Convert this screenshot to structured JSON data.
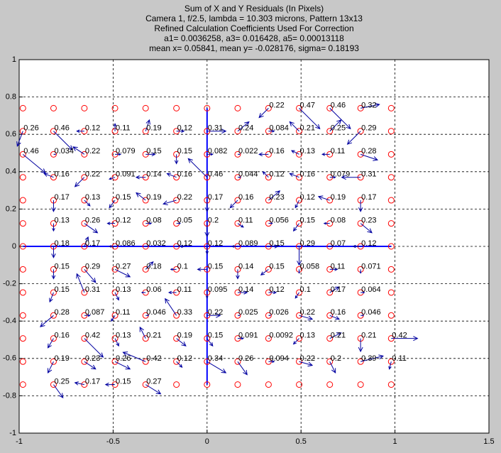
{
  "chart_data": {
    "type": "quiver",
    "title": [
      "Sum of X and Y Residuals (In Pixels)",
      "Camera 1, f/2.5, lambda = 10.303 microns, Pattern 13x13",
      "Refined Calculation Coefficients Used For Correction",
      "a1= 0.0036258, a3= 0.016428, a5= 0.00013118",
      "mean x= 0.05841, mean y= -0.028176, sigma= 0.18193"
    ],
    "xlim": [
      -1,
      1.5
    ],
    "ylim": [
      -1,
      1
    ],
    "xticks": [
      -1,
      -0.5,
      0,
      0.5,
      1,
      1.5
    ],
    "yticks": [
      -1,
      -0.8,
      -0.6,
      -0.4,
      -0.2,
      0,
      0.2,
      0.4,
      0.6,
      0.8,
      1
    ],
    "grid": true,
    "circle_color": "#ff0000",
    "arrow_color": "#0000a0",
    "axis_line_color": "#0000ff",
    "grid_x": [
      -0.98,
      -0.817,
      -0.653,
      -0.49,
      -0.327,
      -0.163,
      0,
      0.163,
      0.327,
      0.49,
      0.653,
      0.817,
      0.98
    ],
    "grid_y": [
      0.74,
      0.617,
      0.493,
      0.37,
      0.247,
      0.123,
      0,
      -0.123,
      -0.247,
      -0.37,
      -0.493,
      -0.617,
      -0.74
    ],
    "vectors": [
      {
        "x": 0.327,
        "y": 0.74,
        "u": -0.05,
        "v": -0.05,
        "value": 0.22
      },
      {
        "x": 0.49,
        "y": 0.74,
        "u": 0.11,
        "v": -0.11,
        "value": 0.47
      },
      {
        "x": 0.653,
        "y": 0.74,
        "u": 0.11,
        "v": -0.11,
        "value": 0.46
      },
      {
        "x": 0.817,
        "y": 0.74,
        "u": 0.1,
        "v": 0.02,
        "value": 0.32
      },
      {
        "x": -0.98,
        "y": 0.617,
        "u": -0.03,
        "v": -0.08,
        "value": 0.26
      },
      {
        "x": -0.817,
        "y": 0.617,
        "u": 0.1,
        "v": -0.1,
        "value": 0.46
      },
      {
        "x": -0.653,
        "y": 0.617,
        "u": -0.04,
        "v": 0,
        "value": 0.12
      },
      {
        "x": -0.49,
        "y": 0.617,
        "u": 0,
        "v": 0.04,
        "value": 0.11
      },
      {
        "x": -0.327,
        "y": 0.617,
        "u": 0.02,
        "v": 0.06,
        "value": 0.19
      },
      {
        "x": -0.163,
        "y": 0.617,
        "u": 0.04,
        "v": 0,
        "value": 0.12
      },
      {
        "x": 0,
        "y": 0.617,
        "u": 0.1,
        "v": 0,
        "value": 0.31
      },
      {
        "x": 0.163,
        "y": 0.617,
        "u": 0.06,
        "v": 0.05,
        "value": 0.24
      },
      {
        "x": 0.327,
        "y": 0.617,
        "u": 0.03,
        "v": 0,
        "value": 0.084
      },
      {
        "x": 0.49,
        "y": 0.617,
        "u": -0.05,
        "v": 0.05,
        "value": 0.21
      },
      {
        "x": 0.653,
        "y": 0.617,
        "u": 0.06,
        "v": 0.06,
        "value": 0.25
      },
      {
        "x": 0.817,
        "y": 0.617,
        "u": -0.07,
        "v": -0.07,
        "value": 0.29
      },
      {
        "x": -0.98,
        "y": 0.493,
        "u": 0.12,
        "v": -0.1,
        "value": 0.46
      },
      {
        "x": -0.817,
        "y": 0.493,
        "u": 0.01,
        "v": 0,
        "value": 0.034
      },
      {
        "x": -0.653,
        "y": 0.493,
        "u": -0.06,
        "v": 0.04,
        "value": 0.22
      },
      {
        "x": -0.49,
        "y": 0.493,
        "u": 0.03,
        "v": 0,
        "value": 0.079
      },
      {
        "x": -0.327,
        "y": 0.493,
        "u": 0.05,
        "v": 0,
        "value": 0.15
      },
      {
        "x": -0.163,
        "y": 0.493,
        "u": 0,
        "v": -0.05,
        "value": 0.15
      },
      {
        "x": 0,
        "y": 0.493,
        "u": 0.03,
        "v": 0,
        "value": 0.082
      },
      {
        "x": 0.163,
        "y": 0.493,
        "u": 0.01,
        "v": 0,
        "value": 0.022
      },
      {
        "x": 0.327,
        "y": 0.493,
        "u": -0.05,
        "v": 0,
        "value": 0.16
      },
      {
        "x": 0.49,
        "y": 0.493,
        "u": -0.04,
        "v": 0.02,
        "value": 0.13
      },
      {
        "x": 0.653,
        "y": 0.493,
        "u": -0.04,
        "v": 0,
        "value": 0.11
      },
      {
        "x": 0.817,
        "y": 0.493,
        "u": 0.09,
        "v": -0.03,
        "value": 0.28
      },
      {
        "x": -0.817,
        "y": 0.37,
        "u": -0.05,
        "v": 0.02,
        "value": 0.16
      },
      {
        "x": -0.653,
        "y": 0.37,
        "u": -0.05,
        "v": -0.05,
        "value": 0.22
      },
      {
        "x": -0.49,
        "y": 0.37,
        "u": -0.03,
        "v": -0.01,
        "value": 0.091
      },
      {
        "x": -0.327,
        "y": 0.37,
        "u": -0.05,
        "v": 0,
        "value": 0.14
      },
      {
        "x": -0.163,
        "y": 0.37,
        "u": -0.05,
        "v": 0.02,
        "value": 0.16
      },
      {
        "x": 0,
        "y": 0.37,
        "u": -0.1,
        "v": 0.1,
        "value": 0.46
      },
      {
        "x": 0.163,
        "y": 0.37,
        "u": 0.015,
        "v": 0,
        "value": 0.044
      },
      {
        "x": 0.327,
        "y": 0.37,
        "u": -0.03,
        "v": 0.03,
        "value": 0.12
      },
      {
        "x": 0.49,
        "y": 0.37,
        "u": -0.05,
        "v": 0.02,
        "value": 0.16
      },
      {
        "x": 0.653,
        "y": 0.37,
        "u": 0.03,
        "v": 0,
        "value": 0.079
      },
      {
        "x": 0.817,
        "y": 0.37,
        "u": -0.1,
        "v": 0,
        "value": 0.31
      },
      {
        "x": -0.817,
        "y": 0.247,
        "u": 0,
        "v": -0.06,
        "value": 0.17
      },
      {
        "x": -0.653,
        "y": 0.247,
        "u": 0.03,
        "v": -0.03,
        "value": 0.13
      },
      {
        "x": -0.49,
        "y": 0.247,
        "u": -0.03,
        "v": -0.04,
        "value": 0.15
      },
      {
        "x": -0.327,
        "y": 0.247,
        "u": -0.05,
        "v": 0.04,
        "value": 0.19
      },
      {
        "x": -0.163,
        "y": 0.247,
        "u": -0.07,
        "v": -0.02,
        "value": 0.22
      },
      {
        "x": 0,
        "y": 0.247,
        "u": 0,
        "v": -0.06,
        "value": 0.17
      },
      {
        "x": 0.163,
        "y": 0.247,
        "u": -0.04,
        "v": -0.04,
        "value": 0.16
      },
      {
        "x": 0.327,
        "y": 0.247,
        "u": 0.06,
        "v": 0.05,
        "value": 0.23
      },
      {
        "x": 0.49,
        "y": 0.247,
        "u": -0.02,
        "v": -0.04,
        "value": 0.12
      },
      {
        "x": 0.653,
        "y": 0.247,
        "u": -0.06,
        "v": 0.02,
        "value": 0.19
      },
      {
        "x": 0.817,
        "y": 0.247,
        "u": 0,
        "v": -0.06,
        "value": 0.17
      },
      {
        "x": -0.817,
        "y": 0.123,
        "u": 0,
        "v": -0.04,
        "value": 0.13
      },
      {
        "x": -0.653,
        "y": 0.123,
        "u": 0.07,
        "v": -0.05,
        "value": 0.26
      },
      {
        "x": -0.49,
        "y": 0.123,
        "u": -0.04,
        "v": 0,
        "value": 0.12
      },
      {
        "x": -0.327,
        "y": 0.123,
        "u": 0.03,
        "v": 0,
        "value": 0.08
      },
      {
        "x": -0.163,
        "y": 0.123,
        "u": 0.02,
        "v": 0,
        "value": 0.05
      },
      {
        "x": 0,
        "y": 0.123,
        "u": 0,
        "v": -0.07,
        "value": 0.2
      },
      {
        "x": 0.163,
        "y": 0.123,
        "u": 0.03,
        "v": -0.02,
        "value": 0.11
      },
      {
        "x": 0.327,
        "y": 0.123,
        "u": 0.02,
        "v": 0,
        "value": 0.056
      },
      {
        "x": 0.49,
        "y": 0.123,
        "u": -0.03,
        "v": -0.04,
        "value": 0.15
      },
      {
        "x": 0.653,
        "y": 0.123,
        "u": -0.03,
        "v": 0,
        "value": 0.08
      },
      {
        "x": 0.817,
        "y": 0.123,
        "u": 0.06,
        "v": -0.05,
        "value": 0.23
      },
      {
        "x": -0.817,
        "y": 0,
        "u": 0,
        "v": -0.06,
        "value": 0.18
      },
      {
        "x": -0.653,
        "y": 0,
        "u": 0.02,
        "v": 0.05,
        "value": 0.17
      },
      {
        "x": -0.49,
        "y": 0,
        "u": -0.03,
        "v": 0,
        "value": 0.086
      },
      {
        "x": -0.327,
        "y": 0,
        "u": 0.01,
        "v": 0,
        "value": 0.032
      },
      {
        "x": -0.163,
        "y": 0,
        "u": 0.04,
        "v": 0,
        "value": 0.12
      },
      {
        "x": 0,
        "y": 0,
        "u": 0,
        "v": -0.04,
        "value": 0.12
      },
      {
        "x": 0.163,
        "y": 0,
        "u": -0.03,
        "v": 0,
        "value": 0.089
      },
      {
        "x": 0.327,
        "y": 0,
        "u": 0.05,
        "v": 0,
        "value": 0.15
      },
      {
        "x": 0.49,
        "y": 0,
        "u": 0,
        "v": -0.1,
        "value": 0.29
      },
      {
        "x": 0.653,
        "y": 0,
        "u": 0.02,
        "v": 0,
        "value": 0.07
      },
      {
        "x": 0.817,
        "y": 0,
        "u": -0.04,
        "v": 0,
        "value": 0.12
      },
      {
        "x": -0.817,
        "y": -0.123,
        "u": 0,
        "v": -0.05,
        "value": 0.15
      },
      {
        "x": -0.653,
        "y": -0.123,
        "u": 0.06,
        "v": -0.07,
        "value": 0.29
      },
      {
        "x": -0.49,
        "y": -0.123,
        "u": 0.08,
        "v": -0.04,
        "value": 0.27
      },
      {
        "x": -0.327,
        "y": -0.123,
        "u": 0.04,
        "v": 0.04,
        "value": 0.18
      },
      {
        "x": -0.163,
        "y": -0.123,
        "u": -0.03,
        "v": 0,
        "value": 0.1
      },
      {
        "x": 0,
        "y": -0.123,
        "u": -0.05,
        "v": 0,
        "value": 0.15
      },
      {
        "x": 0.163,
        "y": -0.123,
        "u": 0,
        "v": -0.05,
        "value": 0.14
      },
      {
        "x": 0.327,
        "y": -0.123,
        "u": -0.04,
        "v": -0.03,
        "value": 0.15
      },
      {
        "x": 0.49,
        "y": -0.123,
        "u": 0,
        "v": -0.02,
        "value": 0.058
      },
      {
        "x": 0.653,
        "y": -0.123,
        "u": 0.04,
        "v": 0,
        "value": 0.11
      },
      {
        "x": 0.817,
        "y": -0.123,
        "u": 0,
        "v": -0.02,
        "value": 0.071
      },
      {
        "x": -0.817,
        "y": -0.247,
        "u": -0.02,
        "v": -0.05,
        "value": 0.15
      },
      {
        "x": -0.653,
        "y": -0.247,
        "u": -0.04,
        "v": 0.1,
        "value": 0.31
      },
      {
        "x": -0.49,
        "y": -0.247,
        "u": 0.02,
        "v": -0.04,
        "value": 0.13
      },
      {
        "x": -0.327,
        "y": -0.247,
        "u": -0.02,
        "v": 0,
        "value": 0.06
      },
      {
        "x": -0.163,
        "y": -0.247,
        "u": -0.04,
        "v": 0,
        "value": 0.11
      },
      {
        "x": 0,
        "y": -0.247,
        "u": 0,
        "v": -0.03,
        "value": 0.095
      },
      {
        "x": 0.163,
        "y": -0.247,
        "u": 0.05,
        "v": 0,
        "value": 0.14
      },
      {
        "x": 0.327,
        "y": -0.247,
        "u": 0.04,
        "v": 0,
        "value": 0.12
      },
      {
        "x": 0.49,
        "y": -0.247,
        "u": -0.02,
        "v": -0.03,
        "value": 0.1
      },
      {
        "x": 0.653,
        "y": -0.247,
        "u": 0.05,
        "v": 0.03,
        "value": 0.17
      },
      {
        "x": 0.817,
        "y": -0.247,
        "u": 0.02,
        "v": 0,
        "value": 0.064
      },
      {
        "x": -0.817,
        "y": -0.37,
        "u": -0.07,
        "v": -0.06,
        "value": 0.28
      },
      {
        "x": -0.653,
        "y": -0.37,
        "u": 0.03,
        "v": 0,
        "value": 0.087
      },
      {
        "x": -0.49,
        "y": -0.37,
        "u": -0.02,
        "v": -0.03,
        "value": 0.11
      },
      {
        "x": -0.327,
        "y": -0.37,
        "u": 0.015,
        "v": 0,
        "value": 0.046
      },
      {
        "x": -0.163,
        "y": -0.37,
        "u": -0.06,
        "v": 0.09,
        "value": 0.33
      },
      {
        "x": 0,
        "y": -0.37,
        "u": 0.07,
        "v": 0,
        "value": 0.22
      },
      {
        "x": 0.163,
        "y": -0.37,
        "u": 0.01,
        "v": 0,
        "value": 0.025
      },
      {
        "x": 0.327,
        "y": -0.37,
        "u": 0.01,
        "v": 0,
        "value": 0.026
      },
      {
        "x": 0.49,
        "y": -0.37,
        "u": 0.07,
        "v": -0.02,
        "value": 0.22
      },
      {
        "x": 0.653,
        "y": -0.37,
        "u": 0.05,
        "v": -0.02,
        "value": 0.16
      },
      {
        "x": 0.817,
        "y": -0.37,
        "u": 0.015,
        "v": 0,
        "value": 0.046
      },
      {
        "x": -0.817,
        "y": -0.493,
        "u": -0.03,
        "v": -0.05,
        "value": 0.16
      },
      {
        "x": -0.653,
        "y": -0.493,
        "u": 0.1,
        "v": -0.1,
        "value": 0.42
      },
      {
        "x": -0.49,
        "y": -0.493,
        "u": 0.02,
        "v": -0.04,
        "value": 0.13
      },
      {
        "x": -0.327,
        "y": -0.493,
        "u": -0.03,
        "v": 0.06,
        "value": 0.21
      },
      {
        "x": -0.163,
        "y": -0.493,
        "u": 0.05,
        "v": -0.04,
        "value": 0.19
      },
      {
        "x": 0,
        "y": -0.493,
        "u": 0.03,
        "v": -0.04,
        "value": 0.15
      },
      {
        "x": 0.163,
        "y": -0.493,
        "u": 0.03,
        "v": 0,
        "value": 0.091
      },
      {
        "x": 0.327,
        "y": -0.493,
        "u": 0.003,
        "v": 0,
        "value": 0.0092
      },
      {
        "x": 0.49,
        "y": -0.493,
        "u": -0.03,
        "v": -0.03,
        "value": 0.13
      },
      {
        "x": 0.653,
        "y": -0.493,
        "u": 0.06,
        "v": 0.03,
        "value": 0.21
      },
      {
        "x": 0.817,
        "y": -0.493,
        "u": 0,
        "v": -0.07,
        "value": 0.21
      },
      {
        "x": 0.98,
        "y": -0.493,
        "u": 0.14,
        "v": 0,
        "value": 0.42
      },
      {
        "x": -0.817,
        "y": -0.617,
        "u": -0.03,
        "v": -0.06,
        "value": 0.19
      },
      {
        "x": -0.653,
        "y": -0.617,
        "u": 0.06,
        "v": -0.04,
        "value": 0.23
      },
      {
        "x": -0.49,
        "y": -0.617,
        "u": 0.08,
        "v": -0.04,
        "value": 0.26
      },
      {
        "x": -0.327,
        "y": -0.617,
        "u": -0.12,
        "v": 0.05,
        "value": 0.42
      },
      {
        "x": -0.163,
        "y": -0.617,
        "u": 0.03,
        "v": -0.03,
        "value": 0.12
      },
      {
        "x": 0,
        "y": -0.617,
        "u": 0.1,
        "v": -0.06,
        "value": 0.34
      },
      {
        "x": 0.163,
        "y": -0.617,
        "u": 0.05,
        "v": -0.07,
        "value": 0.26
      },
      {
        "x": 0.327,
        "y": -0.617,
        "u": 0.03,
        "v": 0,
        "value": 0.094
      },
      {
        "x": 0.49,
        "y": -0.617,
        "u": 0.07,
        "v": -0.02,
        "value": 0.22
      },
      {
        "x": 0.653,
        "y": -0.617,
        "u": 0.03,
        "v": -0.06,
        "value": 0.2
      },
      {
        "x": 0.817,
        "y": -0.617,
        "u": 0.12,
        "v": 0.03,
        "value": 0.39
      },
      {
        "x": 0.98,
        "y": -0.617,
        "u": -0.01,
        "v": -0.04,
        "value": 0.11
      },
      {
        "x": -0.817,
        "y": -0.74,
        "u": 0.05,
        "v": -0.07,
        "value": 0.25
      },
      {
        "x": -0.653,
        "y": -0.74,
        "u": -0.05,
        "v": 0.01,
        "value": 0.17
      },
      {
        "x": -0.49,
        "y": -0.74,
        "u": -0.05,
        "v": 0,
        "value": 0.15
      },
      {
        "x": -0.327,
        "y": -0.74,
        "u": 0.08,
        "v": -0.05,
        "value": 0.27
      }
    ]
  }
}
